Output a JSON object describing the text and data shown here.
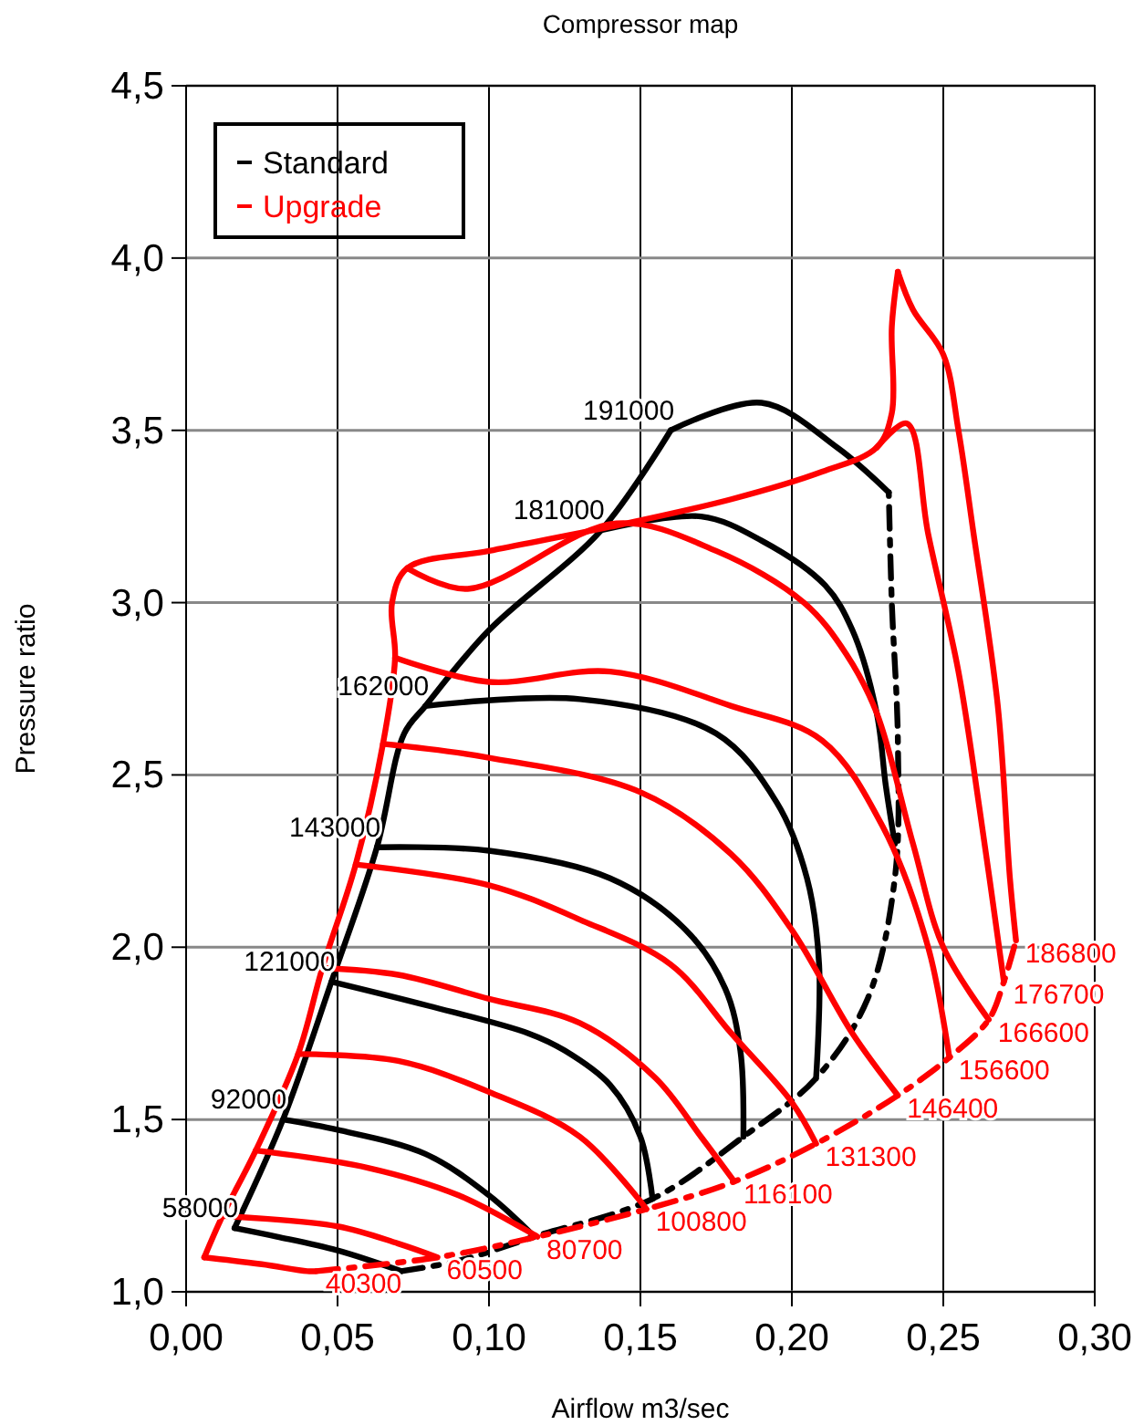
{
  "chart_data": {
    "type": "line",
    "title": "Compressor map",
    "xlabel": "Airflow m3/sec",
    "ylabel": "Pressure ratio",
    "xlim": [
      0,
      0.3
    ],
    "ylim": [
      1,
      4.5
    ],
    "xticks": [
      {
        "value": 0,
        "label": "0,00"
      },
      {
        "value": 0.05,
        "label": "0,05"
      },
      {
        "value": 0.1,
        "label": "0,10"
      },
      {
        "value": 0.15,
        "label": "0,15"
      },
      {
        "value": 0.2,
        "label": "0,20"
      },
      {
        "value": 0.25,
        "label": "0,25"
      },
      {
        "value": 0.3,
        "label": "0,30"
      }
    ],
    "yticks": [
      {
        "value": 1,
        "label": "1,0"
      },
      {
        "value": 1.5,
        "label": "1,5"
      },
      {
        "value": 2,
        "label": "2,0"
      },
      {
        "value": 2.5,
        "label": "2,5"
      },
      {
        "value": 3,
        "label": "3,0"
      },
      {
        "value": 3.5,
        "label": "3,5"
      },
      {
        "value": 4,
        "label": "4,0"
      },
      {
        "value": 4.5,
        "label": "4,5"
      }
    ],
    "grid": true,
    "legend": "top left",
    "marker": "none",
    "series": [
      {
        "name": "Standard",
        "color": "#000000",
        "x": [
          0.016,
          0.032,
          0.048,
          0.063,
          0.072,
          0.079,
          0.1,
          0.137,
          0.16
        ],
        "values": [
          1.185,
          1.5,
          1.9,
          2.29,
          2.62,
          2.7,
          2.92,
          3.21,
          3.5
        ]
      },
      {
        "color": "#000000",
        "line_style": "dashed",
        "x": [
          0.071,
          0.09,
          0.115,
          0.154,
          0.184,
          0.208,
          0.225,
          0.234,
          0.235,
          0.233,
          0.232
        ],
        "values": [
          1.06,
          1.09,
          1.16,
          1.27,
          1.45,
          1.62,
          1.85,
          2.2,
          2.6,
          3.0,
          3.32
        ]
      },
      {
        "name": "58000",
        "color": "#000000",
        "x": [
          0.071,
          0.05,
          0.03,
          0.016
        ],
        "values": [
          1.06,
          1.12,
          1.16,
          1.185
        ]
      },
      {
        "name": "92000",
        "color": "#000000",
        "x": [
          0.115,
          0.1,
          0.079,
          0.05,
          0.032
        ],
        "values": [
          1.16,
          1.28,
          1.4,
          1.47,
          1.5
        ]
      },
      {
        "name": "121000",
        "color": "#000000",
        "x": [
          0.154,
          0.15,
          0.14,
          0.125,
          0.113,
          0.08,
          0.048
        ],
        "values": [
          1.27,
          1.45,
          1.6,
          1.7,
          1.75,
          1.83,
          1.9
        ]
      },
      {
        "name": "143000",
        "color": "#000000",
        "x": [
          0.184,
          0.183,
          0.178,
          0.165,
          0.14,
          0.1,
          0.063
        ],
        "values": [
          1.45,
          1.7,
          1.88,
          2.05,
          2.2,
          2.28,
          2.29
        ]
      },
      {
        "name": "162000",
        "color": "#000000",
        "x": [
          0.208,
          0.209,
          0.205,
          0.195,
          0.175,
          0.13,
          0.079
        ],
        "values": [
          1.62,
          1.95,
          2.2,
          2.42,
          2.62,
          2.72,
          2.7
        ]
      },
      {
        "name": "181000",
        "color": "#000000",
        "x": [
          0.234,
          0.231,
          0.228,
          0.22,
          0.211,
          0.19,
          0.17,
          0.137
        ],
        "values": [
          2.3,
          2.47,
          2.68,
          2.92,
          3.05,
          3.18,
          3.25,
          3.21
        ]
      },
      {
        "name": "191000",
        "color": "#000000",
        "x": [
          0.232,
          0.215,
          0.19,
          0.16
        ],
        "values": [
          3.32,
          3.45,
          3.58,
          3.5
        ]
      },
      {
        "name": "Upgrade",
        "color": "#ff0000",
        "x": [
          0.006,
          0.012,
          0.023,
          0.037,
          0.045,
          0.056,
          0.065,
          0.069,
          0.068,
          0.073,
          0.1,
          0.14,
          0.18,
          0.21,
          0.228,
          0.233,
          0.233,
          0.235
        ],
        "values": [
          1.1,
          1.22,
          1.41,
          1.69,
          1.94,
          2.24,
          2.59,
          2.84,
          3.0,
          3.1,
          3.15,
          3.22,
          3.3,
          3.38,
          3.45,
          3.55,
          3.8,
          3.96
        ]
      },
      {
        "color": "#ff0000",
        "line_style": "dashed",
        "x": [
          0.043,
          0.083,
          0.116,
          0.152,
          0.181,
          0.208,
          0.235,
          0.252,
          0.265,
          0.27,
          0.274
        ],
        "values": [
          1.06,
          1.1,
          1.16,
          1.24,
          1.32,
          1.43,
          1.57,
          1.68,
          1.79,
          1.9,
          2.02
        ]
      },
      {
        "name": "40300",
        "color": "#ff0000",
        "x": [
          0.006,
          0.025,
          0.04,
          0.043
        ],
        "values": [
          1.1,
          1.08,
          1.06,
          1.06
        ]
      },
      {
        "name": "60500",
        "color": "#ff0000",
        "x": [
          0.012,
          0.05,
          0.07,
          0.083
        ],
        "values": [
          1.22,
          1.19,
          1.14,
          1.1
        ]
      },
      {
        "name": "80700",
        "color": "#ff0000",
        "x": [
          0.023,
          0.06,
          0.09,
          0.116
        ],
        "values": [
          1.41,
          1.36,
          1.28,
          1.16
        ]
      },
      {
        "name": "100800",
        "color": "#ff0000",
        "x": [
          0.037,
          0.07,
          0.1,
          0.13,
          0.152
        ],
        "values": [
          1.69,
          1.67,
          1.58,
          1.45,
          1.24
        ]
      },
      {
        "name": "116100",
        "color": "#ff0000",
        "x": [
          0.045,
          0.07,
          0.1,
          0.13,
          0.155,
          0.17,
          0.181
        ],
        "values": [
          1.94,
          1.92,
          1.85,
          1.78,
          1.62,
          1.45,
          1.32
        ]
      },
      {
        "name": "131300",
        "color": "#ff0000",
        "x": [
          0.056,
          0.1,
          0.13,
          0.16,
          0.18,
          0.2,
          0.208
        ],
        "values": [
          2.24,
          2.18,
          2.08,
          1.95,
          1.75,
          1.55,
          1.43
        ]
      },
      {
        "name": "146400",
        "color": "#ff0000",
        "x": [
          0.065,
          0.1,
          0.15,
          0.18,
          0.2,
          0.22,
          0.235
        ],
        "values": [
          2.59,
          2.55,
          2.45,
          2.27,
          2.05,
          1.75,
          1.57
        ]
      },
      {
        "name": "156600",
        "color": "#ff0000",
        "x": [
          0.069,
          0.1,
          0.14,
          0.18,
          0.21,
          0.23,
          0.245,
          0.252
        ],
        "values": [
          2.84,
          2.77,
          2.8,
          2.7,
          2.6,
          2.35,
          2.0,
          1.68
        ]
      },
      {
        "name": "166600",
        "color": "#ff0000",
        "x": [
          0.073,
          0.093,
          0.142,
          0.175,
          0.204,
          0.218,
          0.228,
          0.24,
          0.25,
          0.265
        ],
        "values": [
          3.1,
          3.04,
          3.23,
          3.15,
          3.0,
          2.85,
          2.68,
          2.3,
          2.0,
          1.79
        ]
      },
      {
        "name": "176700",
        "color": "#ff0000",
        "x": [
          0.228,
          0.238,
          0.245,
          0.255,
          0.262,
          0.27
        ],
        "values": [
          3.45,
          3.52,
          3.2,
          2.8,
          2.4,
          1.9
        ]
      },
      {
        "name": "186800",
        "color": "#ff0000",
        "x": [
          0.235,
          0.24,
          0.25,
          0.255,
          0.26,
          0.268,
          0.272,
          0.274
        ],
        "values": [
          3.96,
          3.85,
          3.72,
          3.5,
          3.2,
          2.7,
          2.2,
          2.02
        ]
      }
    ]
  }
}
